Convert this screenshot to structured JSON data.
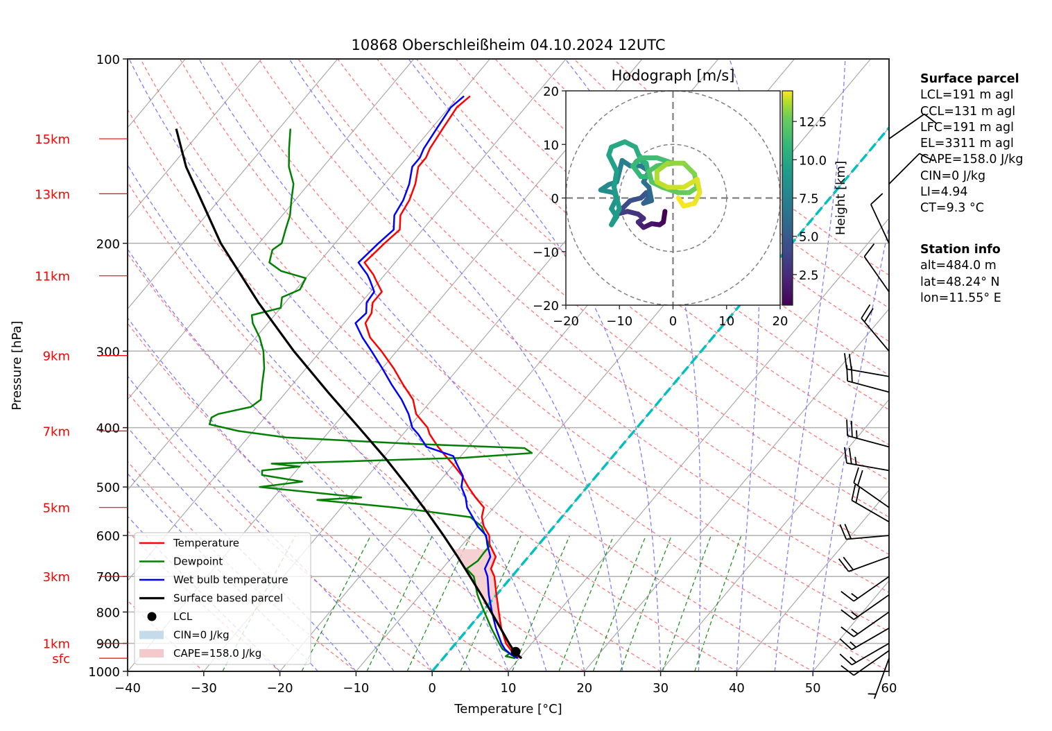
{
  "chart_data": {
    "type": "line",
    "subtype": "skew-T log-p diagram",
    "title": "10868 Oberschleißheim 04.10.2024 12UTC",
    "xlabel": "Temperature [°C]",
    "ylabel": "Pressure [hPa]",
    "xlim": [
      -40,
      60
    ],
    "ylim": [
      1000,
      100
    ],
    "x_ticks": [
      "−40",
      "−30",
      "−20",
      "−10",
      "0",
      "10",
      "20",
      "30",
      "40",
      "50",
      "60"
    ],
    "x_tick_values": [
      -40,
      -30,
      -20,
      -10,
      0,
      10,
      20,
      30,
      40,
      50,
      60
    ],
    "y_ticks": [
      "100",
      "200",
      "300",
      "400",
      "500",
      "600",
      "700",
      "800",
      "900",
      "1000"
    ],
    "y_tick_values": [
      100,
      200,
      300,
      400,
      500,
      600,
      700,
      800,
      900,
      1000
    ],
    "height_labels": [
      {
        "label": "15km",
        "p": 135
      },
      {
        "label": "13km",
        "p": 166
      },
      {
        "label": "11km",
        "p": 226
      },
      {
        "label": "9km",
        "p": 305
      },
      {
        "label": "7km",
        "p": 405
      },
      {
        "label": "5km",
        "p": 540
      },
      {
        "label": "3km",
        "p": 700
      },
      {
        "label": "1km",
        "p": 900
      },
      {
        "label": "sfc",
        "p": 952
      }
    ],
    "grid": true,
    "legend_position": "bottom-left",
    "legend": [
      {
        "label": "Temperature",
        "kind": "line",
        "color": "#ff0000"
      },
      {
        "label": "Dewpoint",
        "kind": "line",
        "color": "#008000"
      },
      {
        "label": "Wet bulb temperature",
        "kind": "line",
        "color": "#0000ff"
      },
      {
        "label": "Surface based parcel",
        "kind": "line",
        "color": "#000000"
      },
      {
        "label": "LCL",
        "kind": "marker",
        "color": "#000000"
      },
      {
        "label": "CIN=0 J/kg",
        "kind": "patch",
        "color": "#c6dbea"
      },
      {
        "label": "CAPE=158.0 J/kg",
        "kind": "patch",
        "color": "#f4c9cc"
      }
    ],
    "series": [
      {
        "name": "Temperature",
        "color": "#ff0000",
        "points": [
          [
            952,
            10.3
          ],
          [
            940,
            9.0
          ],
          [
            920,
            7.8
          ],
          [
            900,
            6.6
          ],
          [
            850,
            4.3
          ],
          [
            800,
            2.2
          ],
          [
            750,
            0.0
          ],
          [
            700,
            -2.3
          ],
          [
            680,
            -3.6
          ],
          [
            650,
            -4.3
          ],
          [
            620,
            -6.5
          ],
          [
            600,
            -7.5
          ],
          [
            580,
            -9.2
          ],
          [
            560,
            -10.5
          ],
          [
            540,
            -11.3
          ],
          [
            520,
            -13.5
          ],
          [
            500,
            -15.6
          ],
          [
            480,
            -17.6
          ],
          [
            460,
            -20.0
          ],
          [
            445,
            -22.0
          ],
          [
            430,
            -24.0
          ],
          [
            410,
            -26.5
          ],
          [
            400,
            -27.5
          ],
          [
            380,
            -30.5
          ],
          [
            360,
            -32.5
          ],
          [
            340,
            -35.5
          ],
          [
            320,
            -38.5
          ],
          [
            300,
            -42.0
          ],
          [
            285,
            -45.0
          ],
          [
            270,
            -47.2
          ],
          [
            260,
            -47.5
          ],
          [
            250,
            -48.5
          ],
          [
            240,
            -48.5
          ],
          [
            230,
            -50.5
          ],
          [
            225,
            -51.5
          ],
          [
            215,
            -54.0
          ],
          [
            200,
            -53.5
          ],
          [
            190,
            -53.0
          ],
          [
            180,
            -54.5
          ],
          [
            170,
            -55.0
          ],
          [
            160,
            -56.0
          ],
          [
            150,
            -57.5
          ],
          [
            145,
            -57.5
          ],
          [
            140,
            -58.0
          ],
          [
            130,
            -58.5
          ],
          [
            120,
            -59.0
          ],
          [
            115,
            -58.5
          ]
        ]
      },
      {
        "name": "Dewpoint",
        "color": "#008000",
        "points": [
          [
            952,
            9.5
          ],
          [
            945,
            8.0
          ],
          [
            935,
            8.2
          ],
          [
            920,
            6.8
          ],
          [
            900,
            5.7
          ],
          [
            850,
            3.0
          ],
          [
            800,
            0.3
          ],
          [
            750,
            -2.5
          ],
          [
            700,
            -5.0
          ],
          [
            680,
            -6.8
          ],
          [
            660,
            -6.2
          ],
          [
            640,
            -6.3
          ],
          [
            625,
            -6.3
          ],
          [
            600,
            -8.0
          ],
          [
            580,
            -9.5
          ],
          [
            560,
            -12.0
          ],
          [
            545,
            -20.0
          ],
          [
            540,
            -23.0
          ],
          [
            525,
            -34.0
          ],
          [
            520,
            -28.5
          ],
          [
            500,
            -43.0
          ],
          [
            490,
            -38.0
          ],
          [
            478,
            -44.0
          ],
          [
            470,
            -44.5
          ],
          [
            463,
            -40.0
          ],
          [
            458,
            -44.0
          ],
          [
            448,
            -19.5
          ],
          [
            440,
            -11.0
          ],
          [
            432,
            -12.5
          ],
          [
            425,
            -28.0
          ],
          [
            415,
            -45.0
          ],
          [
            405,
            -52.0
          ],
          [
            395,
            -56.5
          ],
          [
            385,
            -57.0
          ],
          [
            380,
            -56.5
          ],
          [
            370,
            -53.0
          ],
          [
            360,
            -52.5
          ],
          [
            340,
            -54.0
          ],
          [
            320,
            -55.5
          ],
          [
            300,
            -57.5
          ],
          [
            285,
            -59.5
          ],
          [
            270,
            -62.0
          ],
          [
            262,
            -63.0
          ],
          [
            255,
            -60.0
          ],
          [
            245,
            -61.0
          ],
          [
            238,
            -59.5
          ],
          [
            228,
            -60.0
          ],
          [
            222,
            -64.0
          ],
          [
            215,
            -66.5
          ],
          [
            205,
            -67.5
          ],
          [
            200,
            -67.0
          ],
          [
            190,
            -68.0
          ],
          [
            180,
            -69.0
          ],
          [
            170,
            -70.5
          ],
          [
            160,
            -72.0
          ],
          [
            150,
            -74.5
          ],
          [
            140,
            -76.5
          ],
          [
            130,
            -78.5
          ]
        ]
      },
      {
        "name": "Wet bulb temperature",
        "color": "#0000ff",
        "points": [
          [
            952,
            9.8
          ],
          [
            940,
            8.6
          ],
          [
            920,
            7.1
          ],
          [
            900,
            6.0
          ],
          [
            850,
            3.6
          ],
          [
            800,
            1.3
          ],
          [
            750,
            -1.0
          ],
          [
            700,
            -3.2
          ],
          [
            680,
            -4.4
          ],
          [
            650,
            -5.0
          ],
          [
            620,
            -6.8
          ],
          [
            600,
            -7.9
          ],
          [
            580,
            -10.0
          ],
          [
            560,
            -11.7
          ],
          [
            540,
            -13.5
          ],
          [
            520,
            -14.8
          ],
          [
            500,
            -16.5
          ],
          [
            480,
            -17.5
          ],
          [
            460,
            -19.5
          ],
          [
            445,
            -21.0
          ],
          [
            430,
            -25.5
          ],
          [
            410,
            -28.0
          ],
          [
            400,
            -29.5
          ],
          [
            380,
            -31.5
          ],
          [
            360,
            -34.0
          ],
          [
            340,
            -37.0
          ],
          [
            320,
            -40.0
          ],
          [
            300,
            -43.3
          ],
          [
            285,
            -46.0
          ],
          [
            270,
            -48.5
          ],
          [
            260,
            -48.2
          ],
          [
            250,
            -49.3
          ],
          [
            240,
            -49.5
          ],
          [
            230,
            -51.3
          ],
          [
            225,
            -52.3
          ],
          [
            215,
            -54.8
          ],
          [
            200,
            -54.3
          ],
          [
            190,
            -53.8
          ],
          [
            180,
            -55.3
          ],
          [
            170,
            -55.8
          ],
          [
            160,
            -56.8
          ],
          [
            150,
            -58.3
          ],
          [
            145,
            -58.3
          ],
          [
            140,
            -58.8
          ],
          [
            130,
            -59.3
          ],
          [
            120,
            -59.8
          ],
          [
            115,
            -59.3
          ]
        ]
      },
      {
        "name": "Surface based parcel",
        "color": "#000000",
        "points": [
          [
            952,
            10.3
          ],
          [
            930,
            8.7
          ],
          [
            900,
            7.0
          ],
          [
            850,
            4.2
          ],
          [
            800,
            1.2
          ],
          [
            750,
            -2.0
          ],
          [
            700,
            -5.5
          ],
          [
            650,
            -9.3
          ],
          [
            600,
            -13.5
          ],
          [
            550,
            -18.2
          ],
          [
            500,
            -23.5
          ],
          [
            450,
            -29.5
          ],
          [
            400,
            -36.5
          ],
          [
            350,
            -44.5
          ],
          [
            300,
            -53.5
          ],
          [
            250,
            -63.5
          ],
          [
            200,
            -75.0
          ],
          [
            150,
            -88.0
          ],
          [
            130,
            -93.5
          ]
        ]
      }
    ],
    "lcl": {
      "p": 929,
      "t": 8.8
    },
    "cape_area": {
      "label": "CAPE=158.0 J/kg",
      "p_range": [
        929,
        630
      ]
    },
    "zero_isotherm": {
      "t": 0,
      "color": "#00c0c0"
    },
    "wind_barbs": [
      {
        "p": 952,
        "dir": 200,
        "speed_kt": 5
      },
      {
        "p": 925,
        "dir": 235,
        "speed_kt": 10
      },
      {
        "p": 900,
        "dir": 240,
        "speed_kt": 15
      },
      {
        "p": 850,
        "dir": 240,
        "speed_kt": 15
      },
      {
        "p": 800,
        "dir": 235,
        "speed_kt": 15
      },
      {
        "p": 750,
        "dir": 235,
        "speed_kt": 15
      },
      {
        "p": 700,
        "dir": 235,
        "speed_kt": 15
      },
      {
        "p": 650,
        "dir": 250,
        "speed_kt": 20
      },
      {
        "p": 600,
        "dir": 265,
        "speed_kt": 20
      },
      {
        "p": 570,
        "dir": 300,
        "speed_kt": 20
      },
      {
        "p": 540,
        "dir": 305,
        "speed_kt": 20
      },
      {
        "p": 470,
        "dir": 280,
        "speed_kt": 25
      },
      {
        "p": 430,
        "dir": 285,
        "speed_kt": 25
      },
      {
        "p": 350,
        "dir": 285,
        "speed_kt": 20
      },
      {
        "p": 330,
        "dir": 280,
        "speed_kt": 20
      },
      {
        "p": 300,
        "dir": 320,
        "speed_kt": 20
      },
      {
        "p": 240,
        "dir": 325,
        "speed_kt": 10
      },
      {
        "p": 200,
        "dir": 335,
        "speed_kt": 10
      },
      {
        "p": 160,
        "dir": 45,
        "speed_kt": 10
      },
      {
        "p": 135,
        "dir": 55,
        "speed_kt": 10
      }
    ]
  },
  "hodograph": {
    "title": "Hodograph [m/s]",
    "xlim": [
      -20,
      20
    ],
    "ylim": [
      -20,
      20
    ],
    "x_ticks": [
      "−20",
      "−10",
      "0",
      "10",
      "20"
    ],
    "y_ticks": [
      "20",
      "10",
      "0",
      "−10",
      "−20"
    ],
    "rings": [
      10,
      20
    ],
    "colorbar_label": "Height [km]",
    "colorbar_ticks": [
      "2.5",
      "5.0",
      "7.5",
      "10.0",
      "12.5"
    ],
    "colorbar_range": [
      0.5,
      14.5
    ],
    "points_uv_height": [
      [
        -1.5,
        -2.5,
        0.5
      ],
      [
        -1.8,
        -4.5,
        0.8
      ],
      [
        -2.5,
        -5.0,
        1.1
      ],
      [
        -4,
        -4.8,
        1.5
      ],
      [
        -5.5,
        -5.5,
        1.9
      ],
      [
        -6.5,
        -4.5,
        2.3
      ],
      [
        -5.5,
        -3.8,
        2.6
      ],
      [
        -6.5,
        -3.0,
        3.0
      ],
      [
        -8.5,
        -2.5,
        3.4
      ],
      [
        -10.5,
        -3.0,
        3.8
      ],
      [
        -9,
        -1.5,
        4.1
      ],
      [
        -8,
        -0.5,
        4.4
      ],
      [
        -6,
        0,
        4.7
      ],
      [
        -5,
        1,
        5.0
      ],
      [
        -4.5,
        0,
        5.3
      ],
      [
        -5.5,
        -1.0,
        5.6
      ],
      [
        -4,
        -0.5,
        5.9
      ],
      [
        -4.5,
        2,
        6.2
      ],
      [
        -5.5,
        3,
        6.5
      ],
      [
        -4.5,
        5,
        6.8
      ],
      [
        -6,
        6,
        7.0
      ],
      [
        -8,
        6,
        7.2
      ],
      [
        -9.5,
        7,
        7.4
      ],
      [
        -10,
        5,
        7.6
      ],
      [
        -10.5,
        3,
        7.8
      ],
      [
        -12,
        2.5,
        8.0
      ],
      [
        -13.5,
        1.5,
        8.2
      ],
      [
        -11,
        1,
        8.4
      ],
      [
        -10.5,
        0,
        8.6
      ],
      [
        -11.5,
        -2,
        8.8
      ],
      [
        -10.5,
        -3.5,
        9.0
      ],
      [
        -11.5,
        -5,
        9.1
      ],
      [
        -10,
        -2,
        9.2
      ],
      [
        -11,
        2,
        9.3
      ],
      [
        -10.5,
        5,
        9.5
      ],
      [
        -12,
        8,
        9.7
      ],
      [
        -11.5,
        9.5,
        9.9
      ],
      [
        -9,
        10.5,
        10.1
      ],
      [
        -7,
        9.5,
        10.3
      ],
      [
        -6,
        7,
        10.5
      ],
      [
        -5,
        6.5,
        10.7
      ],
      [
        -4.5,
        4,
        10.9
      ],
      [
        -6,
        4,
        11.0
      ],
      [
        -7.5,
        6,
        11.1
      ],
      [
        -6,
        7.5,
        11.3
      ],
      [
        -3,
        7.5,
        11.5
      ],
      [
        0,
        6.5,
        11.7
      ],
      [
        -3,
        6,
        11.8
      ],
      [
        -4.5,
        5,
        11.9
      ],
      [
        -4,
        3,
        12.1
      ],
      [
        -2,
        2,
        12.3
      ],
      [
        1,
        1,
        12.5
      ],
      [
        3,
        1,
        12.7
      ],
      [
        4.5,
        2,
        12.9
      ],
      [
        4,
        4.5,
        13.1
      ],
      [
        2,
        6.5,
        13.3
      ],
      [
        -1,
        6.5,
        13.5
      ],
      [
        -3,
        5,
        13.7
      ],
      [
        -3,
        3,
        13.9
      ],
      [
        -1,
        2,
        14.0
      ],
      [
        2,
        2,
        14.1
      ],
      [
        4.5,
        3.5,
        14.2
      ],
      [
        5,
        1,
        14.3
      ],
      [
        4,
        -1,
        14.4
      ],
      [
        2,
        -1.5,
        14.45
      ],
      [
        1,
        0,
        14.5
      ]
    ]
  },
  "surface_parcel": {
    "header": "Surface parcel",
    "lines": [
      "LCL=191 m agl",
      "CCL=131 m agl",
      "LFC=191 m agl",
      "EL=3311 m agl",
      "CAPE=158.0 J/kg",
      "CIN=0 J/kg",
      "LI=4.94",
      "CT=9.3 °C"
    ]
  },
  "station_info": {
    "header": "Station info",
    "lines": [
      "alt=484.0 m",
      "lat=48.24° N",
      "lon=11.55° E"
    ]
  }
}
